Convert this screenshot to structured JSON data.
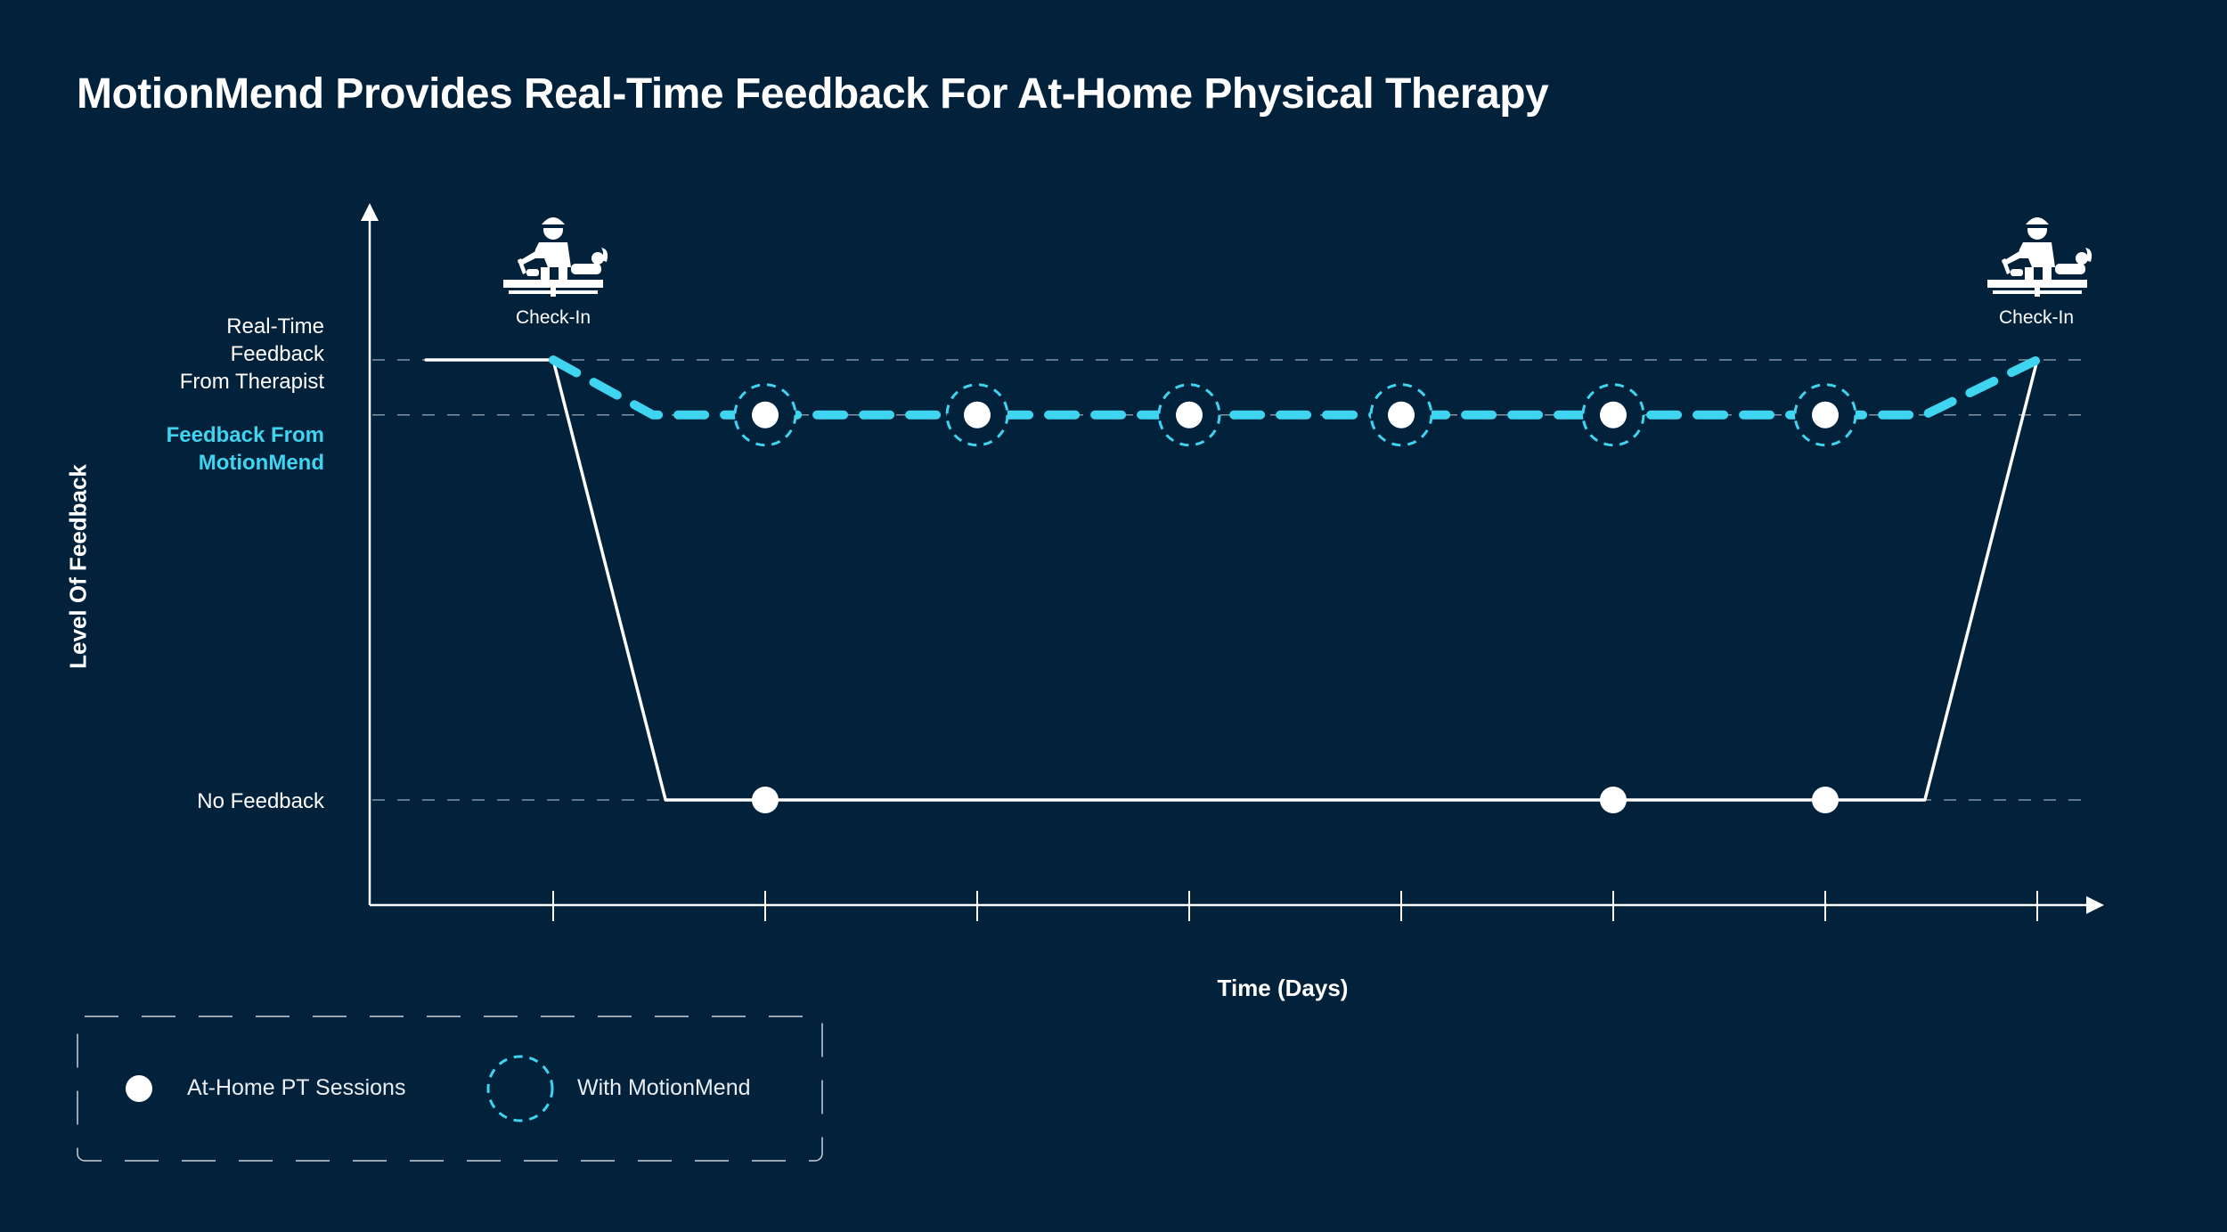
{
  "title": "MotionMend Provides Real-Time Feedback For At-Home Physical Therapy",
  "chart_data": {
    "type": "line",
    "xlabel": "Time (Days)",
    "ylabel": "Level Of Feedback",
    "y_levels": [
      {
        "label": "Real-Time\nFeedback\nFrom Therapist",
        "value": 2
      },
      {
        "label": "Feedback From\nMotionMend",
        "value": 1.75
      },
      {
        "label": "No Feedback",
        "value": 0
      }
    ],
    "x_ticks": [
      1,
      2,
      3,
      4,
      5,
      6,
      7,
      8
    ],
    "checkins": [
      {
        "day": 1,
        "label": "Check-In"
      },
      {
        "day": 8,
        "label": "Check-In"
      }
    ],
    "series": [
      {
        "key": "without",
        "points": [
          [
            0.4,
            2
          ],
          [
            1,
            2
          ],
          [
            1.53,
            0
          ],
          [
            7.47,
            0
          ],
          [
            8,
            2
          ]
        ],
        "color": "#ffffff",
        "style": "solid"
      },
      {
        "key": "with",
        "points": [
          [
            1,
            2
          ],
          [
            1.47,
            1.75
          ],
          [
            7.47,
            1.75
          ],
          [
            8,
            2
          ]
        ],
        "color": "#3fd4f0",
        "style": "dashed"
      }
    ],
    "sessions_with_motionmend": [
      2,
      3,
      4,
      5,
      6,
      7
    ],
    "sessions_without": [
      2,
      6,
      7
    ]
  },
  "legend": {
    "sessions_label": "At-Home PT Sessions",
    "motionmend_label": "With MotionMend"
  },
  "colors": {
    "background": "#02213a",
    "accent": "#3fd4f0",
    "line": "#ffffff"
  },
  "icons": {
    "checkin": "therapist-massage-icon"
  }
}
